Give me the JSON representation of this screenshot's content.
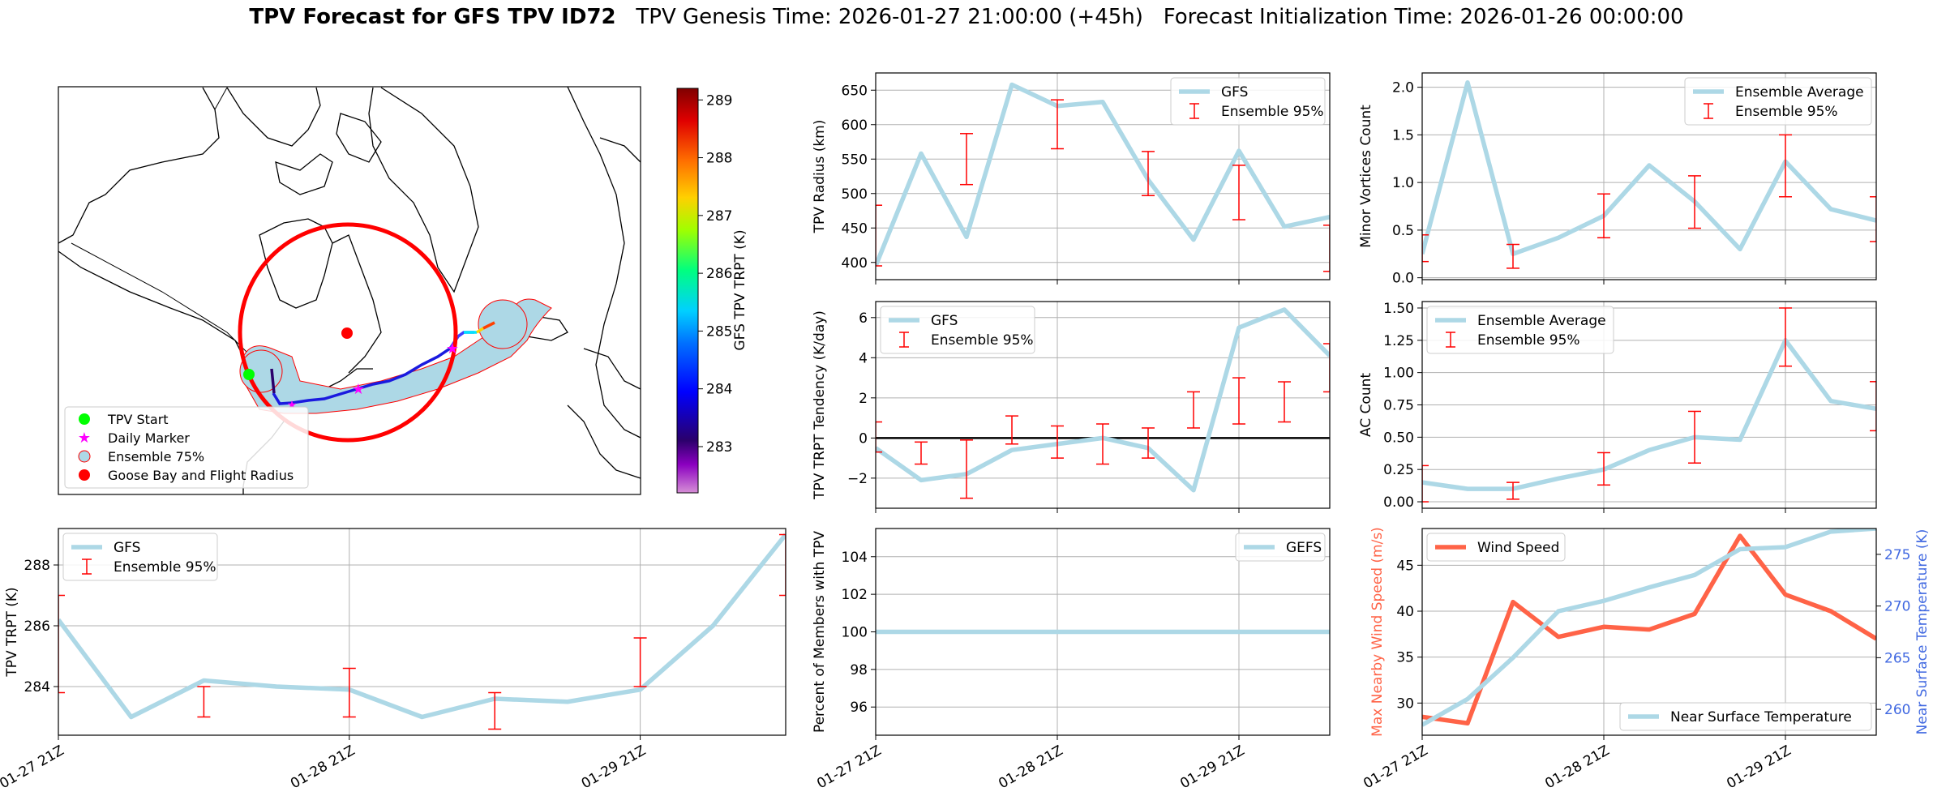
{
  "header": {
    "title_bold": "TPV Forecast for GFS TPV ID72",
    "title_rest": "   TPV Genesis Time: 2026-01-27 21:00:00 (+45h)   Forecast Initialization Time: 2026-01-26 00:00:00"
  },
  "colors": {
    "gfs": "#add8e6",
    "ensemble": "#ff0000",
    "wind": "#ff6347",
    "temp_axis": "#4169e1",
    "circle": "#ff0000"
  },
  "time_ticks": [
    "01-27 21Z",
    "01-28 21Z",
    "01-29 21Z"
  ],
  "chart_data": [
    {
      "id": "map",
      "type": "map",
      "colorbar": {
        "label": "GFS TPV TRPT (K)",
        "ticks": [
          "283",
          "284",
          "285",
          "286",
          "287",
          "288",
          "289"
        ],
        "range": [
          282.2,
          289.2
        ]
      },
      "legend": [
        "TPV Start",
        "Daily Marker",
        "Ensemble 75%",
        "Goose Bay and Flight Radius"
      ],
      "legend_placement": "lower-left"
    },
    {
      "id": "radius",
      "type": "line",
      "ylabel": "TPV Radius (km)",
      "ylim": [
        375,
        675
      ],
      "yticks": [
        400,
        450,
        500,
        550,
        600,
        650
      ],
      "series": [
        {
          "name": "GFS",
          "x": [
            0,
            0.25,
            0.5,
            0.75,
            1,
            1.25,
            1.5,
            1.75,
            2,
            2.25,
            2.5
          ],
          "values": [
            395,
            558,
            437,
            658,
            627,
            633,
            520,
            433,
            562,
            452,
            466
          ]
        }
      ],
      "errorbars": {
        "name": "Ensemble 95%",
        "x": [
          0,
          0.5,
          1,
          1.5,
          2,
          2.5
        ],
        "low": [
          395,
          513,
          565,
          497,
          462,
          387
        ],
        "high": [
          483,
          587,
          636,
          561,
          541,
          454
        ]
      },
      "legend_placement": "top-right"
    },
    {
      "id": "minor",
      "type": "line",
      "ylabel": "Minor Vortices Count",
      "ylim": [
        -0.02,
        2.15
      ],
      "yticks": [
        0.0,
        0.5,
        1.0,
        1.5,
        2.0
      ],
      "series": [
        {
          "name": "Ensemble Average",
          "x": [
            0,
            0.25,
            0.5,
            0.75,
            1,
            1.25,
            1.5,
            1.75,
            2,
            2.25,
            2.5
          ],
          "values": [
            0.25,
            2.05,
            0.25,
            0.42,
            0.65,
            1.18,
            0.8,
            0.3,
            1.22,
            0.72,
            0.6
          ]
        }
      ],
      "errorbars": {
        "name": "Ensemble 95%",
        "x": [
          0,
          0.5,
          1,
          1.5,
          2,
          2.5
        ],
        "low": [
          0.17,
          0.1,
          0.42,
          0.52,
          0.85,
          0.38
        ],
        "high": [
          0.45,
          0.35,
          0.88,
          1.07,
          1.5,
          0.85
        ]
      },
      "legend_placement": "top-right"
    },
    {
      "id": "tendency",
      "type": "line",
      "ylabel": "TPV TRPT Tendency (K/day)",
      "ylim": [
        -3.5,
        6.8
      ],
      "yticks": [
        -2,
        0,
        2,
        4,
        6
      ],
      "zero_line": true,
      "series": [
        {
          "name": "GFS",
          "x": [
            0,
            0.25,
            0.5,
            0.75,
            1,
            1.25,
            1.5,
            1.75,
            2,
            2.25,
            2.5
          ],
          "values": [
            -0.5,
            -2.1,
            -1.8,
            -0.6,
            -0.3,
            0.0,
            -0.5,
            -2.6,
            5.5,
            6.4,
            4.1
          ]
        }
      ],
      "errorbars": {
        "name": "Ensemble 95%",
        "x": [
          0,
          0.25,
          0.5,
          0.75,
          1,
          1.25,
          1.5,
          1.75,
          2,
          2.25,
          2.5
        ],
        "low": [
          -0.7,
          -1.3,
          -3.0,
          -0.3,
          -1.0,
          -1.3,
          -1.0,
          0.5,
          0.7,
          0.8,
          2.3
        ],
        "high": [
          0.8,
          -0.2,
          -0.1,
          1.1,
          0.6,
          0.7,
          0.5,
          2.3,
          3.0,
          2.8,
          4.7
        ]
      },
      "legend_placement": "top-left"
    },
    {
      "id": "ac",
      "type": "line",
      "ylabel": "AC Count",
      "ylim": [
        -0.05,
        1.55
      ],
      "yticks": [
        0.0,
        0.25,
        0.5,
        0.75,
        1.0,
        1.25,
        1.5
      ],
      "series": [
        {
          "name": "Ensemble Average",
          "x": [
            0,
            0.25,
            0.5,
            0.75,
            1,
            1.25,
            1.5,
            1.75,
            2,
            2.25,
            2.5
          ],
          "values": [
            0.15,
            0.1,
            0.1,
            0.18,
            0.25,
            0.4,
            0.5,
            0.48,
            1.25,
            0.78,
            0.72
          ]
        }
      ],
      "errorbars": {
        "name": "Ensemble 95%",
        "x": [
          0,
          0.5,
          1,
          1.5,
          2,
          2.5
        ],
        "low": [
          0.0,
          0.02,
          0.13,
          0.3,
          1.05,
          0.55
        ],
        "high": [
          0.28,
          0.15,
          0.38,
          0.7,
          1.5,
          0.93
        ]
      },
      "legend_placement": "top-left"
    },
    {
      "id": "trpt",
      "type": "line",
      "ylabel": "TPV TRPT (K)",
      "ylim": [
        282.4,
        289.2
      ],
      "yticks": [
        284,
        286,
        288
      ],
      "series": [
        {
          "name": "GFS",
          "x": [
            0,
            0.25,
            0.5,
            0.75,
            1,
            1.25,
            1.5,
            1.75,
            2,
            2.25,
            2.5
          ],
          "values": [
            286.2,
            283.0,
            284.2,
            284.0,
            283.9,
            283.0,
            283.6,
            283.5,
            283.9,
            286.0,
            289.0
          ]
        }
      ],
      "errorbars": {
        "name": "Ensemble 95%",
        "x": [
          0,
          0.5,
          1,
          1.5,
          2,
          2.5
        ],
        "low": [
          283.8,
          283.0,
          283.0,
          282.6,
          284.0,
          287.0
        ],
        "high": [
          287.0,
          284.0,
          284.6,
          283.8,
          285.6,
          289.0
        ]
      },
      "legend_placement": "top-left"
    },
    {
      "id": "percent",
      "type": "line",
      "ylabel": "Percent of Members with TPV",
      "ylim": [
        94.5,
        105.5
      ],
      "yticks": [
        96,
        98,
        100,
        102,
        104
      ],
      "series": [
        {
          "name": "GEFS",
          "x": [
            0,
            0.25,
            0.5,
            0.75,
            1,
            1.25,
            1.5,
            1.75,
            2,
            2.25,
            2.5
          ],
          "values": [
            100,
            100,
            100,
            100,
            100,
            100,
            100,
            100,
            100,
            100,
            100
          ]
        }
      ],
      "legend_placement": "top-right"
    },
    {
      "id": "wind",
      "type": "line",
      "ylabel": "Max Nearby Wind Speed (m/s)",
      "ylabel_right": "Near Surface Temperature (K)",
      "ylim": [
        26.5,
        49
      ],
      "yticks": [
        30,
        35,
        40,
        45
      ],
      "ylim_right": [
        257.5,
        277.5
      ],
      "yticks_right": [
        260,
        265,
        270,
        275
      ],
      "series": [
        {
          "name": "Wind Speed",
          "axis": "left",
          "x": [
            0,
            0.25,
            0.5,
            0.75,
            1,
            1.25,
            1.5,
            1.75,
            2,
            2.25,
            2.5
          ],
          "values": [
            28.5,
            27.8,
            41.0,
            37.2,
            38.3,
            38.0,
            39.7,
            48.2,
            41.8,
            40.0,
            37.0
          ]
        },
        {
          "name": "Near Surface Temperature",
          "axis": "right",
          "x": [
            0,
            0.25,
            0.5,
            0.75,
            1,
            1.25,
            1.5,
            1.75,
            2,
            2.25,
            2.5
          ],
          "values": [
            258.5,
            261.0,
            265.0,
            269.5,
            270.5,
            271.8,
            273.0,
            275.5,
            275.7,
            277.2,
            277.5
          ]
        }
      ],
      "legend_placement": "top-left / bottom-right"
    }
  ]
}
